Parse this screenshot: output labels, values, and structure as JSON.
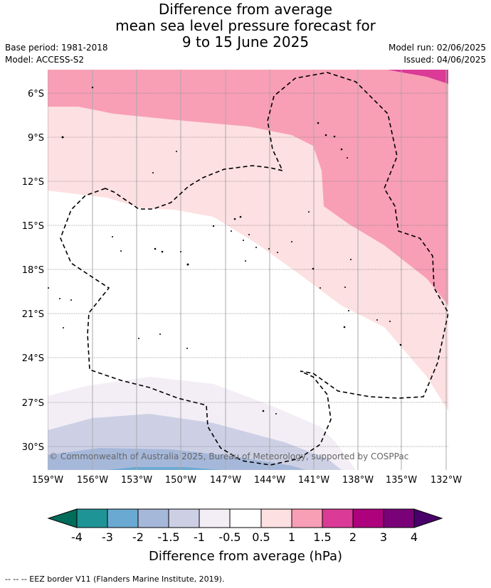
{
  "title": {
    "line1": "Difference from average",
    "line2": "mean sea level pressure forecast for",
    "line3": "9 to 15 June 2025"
  },
  "meta": {
    "base_period": "Base period: 1981-2018",
    "model": "Model: ACCESS-S2",
    "model_run": "Model run: 02/06/2025",
    "issued": "Issued: 04/06/2025"
  },
  "map": {
    "lon_ticks": [
      "159°W",
      "156°W",
      "153°W",
      "150°W",
      "147°W",
      "144°W",
      "141°W",
      "138°W",
      "135°W",
      "132°W"
    ],
    "lat_ticks": [
      "6°S",
      "9°S",
      "12°S",
      "15°S",
      "18°S",
      "21°S",
      "24°S",
      "27°S",
      "30°S"
    ],
    "copyright": "© Commonwealth of Australia 2025, Bureau of Meteorology, supported by COSPPac"
  },
  "colorbar": {
    "ticks": [
      "-4",
      "-3",
      "-2",
      "-1.5",
      "-1",
      "-0.5",
      "0.5",
      "1",
      "1.5",
      "2",
      "3",
      "4"
    ],
    "colors": [
      "#1f9496",
      "#6aa9d2",
      "#a6b8da",
      "#cdd0e5",
      "#f3eef5",
      "#ffffff",
      "#fde0e1",
      "#f89fb5",
      "#db3a96",
      "#ae017e",
      "#7a0177"
    ],
    "under_color": "#016c59",
    "over_color": "#49006a",
    "label": "Difference from average (hPa)"
  },
  "footer": "-- -- -- EEZ border V11 (Flanders Marine Institute, 2019)."
}
